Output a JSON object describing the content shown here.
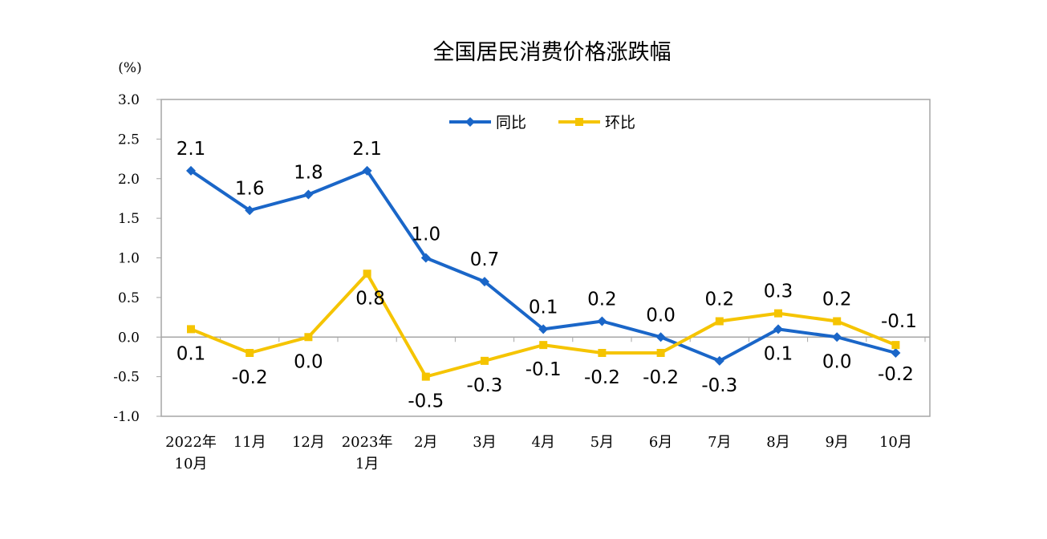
{
  "chart_data": {
    "type": "line",
    "title": "全国居民消费价格涨跌幅",
    "unit_label": "(%)",
    "ylim": [
      -1.0,
      3.0
    ],
    "yticks": [
      "3.0",
      "2.5",
      "2.0",
      "1.5",
      "1.0",
      "0.5",
      "0.0",
      "-0.5",
      "-1.0"
    ],
    "categories": [
      [
        "2022年",
        "10月"
      ],
      [
        "11月"
      ],
      [
        "12月"
      ],
      [
        "2023年",
        "1月"
      ],
      [
        "2月"
      ],
      [
        "3月"
      ],
      [
        "4月"
      ],
      [
        "5月"
      ],
      [
        "6月"
      ],
      [
        "7月"
      ],
      [
        "8月"
      ],
      [
        "9月"
      ],
      [
        "10月"
      ]
    ],
    "legend_position": "top-center",
    "series": [
      {
        "name": "同比",
        "color": "#1a66c8",
        "marker": "diamond",
        "values": [
          2.1,
          1.6,
          1.8,
          2.1,
          1.0,
          0.7,
          0.1,
          0.2,
          0.0,
          -0.3,
          0.1,
          0.0,
          -0.2
        ],
        "labels": [
          "2.1",
          "1.6",
          "1.8",
          "2.1",
          "1.0",
          "0.7",
          "0.1",
          "0.2",
          "0.0",
          "-0.3",
          "0.1",
          "0.0",
          "-0.2"
        ]
      },
      {
        "name": "环比",
        "color": "#f5c400",
        "marker": "square",
        "values": [
          0.1,
          -0.2,
          0.0,
          0.8,
          -0.5,
          -0.3,
          -0.1,
          -0.2,
          -0.2,
          0.2,
          0.3,
          0.2,
          -0.1
        ],
        "labels": [
          "0.1",
          "-0.2",
          "0.0",
          "0.8",
          "-0.5",
          "-0.3",
          "-0.1",
          "-0.2",
          "-0.2",
          "0.2",
          "0.3",
          "0.2",
          "-0.1"
        ]
      }
    ]
  }
}
